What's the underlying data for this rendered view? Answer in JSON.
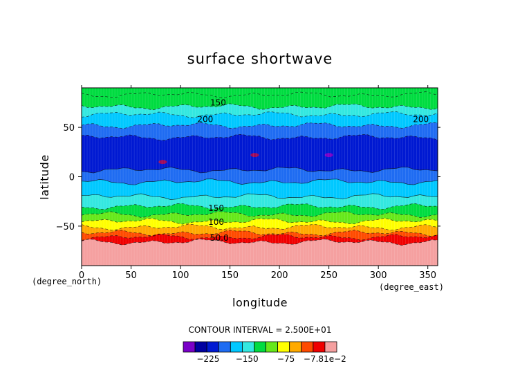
{
  "chart_data": {
    "type": "heatmap",
    "title": "surface shortwave",
    "xlabel": "longitude",
    "ylabel": "latitude",
    "x_unit": "(degree_east)",
    "y_unit": "(degree_north)",
    "xlim": [
      0,
      360
    ],
    "ylim": [
      -90,
      90
    ],
    "x_ticks": [
      0,
      50,
      100,
      150,
      200,
      250,
      300,
      350
    ],
    "x_tick_labels": [
      "0",
      "50",
      "100",
      "150",
      "200",
      "250",
      "300",
      "350"
    ],
    "y_ticks": [
      -50,
      0,
      50
    ],
    "y_tick_labels": [
      "−50",
      "0",
      "50"
    ],
    "contour_interval_text": "CONTOUR INTERVAL = 2.500E+01",
    "levels": [
      -250,
      -225,
      -200,
      -175,
      -150,
      -125,
      -100,
      -75,
      -50,
      -25,
      0
    ],
    "colorbar_colors": [
      "#7a00c8",
      "#0000a0",
      "#0019d2",
      "#1f6cf2",
      "#00c8ff",
      "#33e8e0",
      "#00dc40",
      "#66e81a",
      "#ffff00",
      "#ffaa00",
      "#ff4b00",
      "#f00000",
      "#f5a0a0"
    ],
    "colorbar_tick_labels": [
      "−225",
      "−150",
      "−75",
      "−7.81e−2"
    ],
    "colorbar_tick_values": [
      -225,
      -150,
      -75,
      -0.0781
    ],
    "zonal_bands": [
      {
        "lat_from": 90,
        "lat_to": 83,
        "color": "#00dc40"
      },
      {
        "lat_from": 83,
        "lat_to": 71,
        "color": "#00dc40"
      },
      {
        "lat_from": 71,
        "lat_to": 63,
        "color": "#33e8e0"
      },
      {
        "lat_from": 63,
        "lat_to": 52,
        "color": "#00c8ff"
      },
      {
        "lat_from": 52,
        "lat_to": 40,
        "color": "#1f6cf2"
      },
      {
        "lat_from": 40,
        "lat_to": 7,
        "color": "#0019d2"
      },
      {
        "lat_from": 7,
        "lat_to": -5,
        "color": "#1f6cf2"
      },
      {
        "lat_from": -5,
        "lat_to": -20,
        "color": "#00c8ff"
      },
      {
        "lat_from": -20,
        "lat_to": -30,
        "color": "#33e8e0"
      },
      {
        "lat_from": -30,
        "lat_to": -38,
        "color": "#00dc40"
      },
      {
        "lat_from": -38,
        "lat_to": -45,
        "color": "#66e81a"
      },
      {
        "lat_from": -45,
        "lat_to": -51,
        "color": "#ffff00"
      },
      {
        "lat_from": -51,
        "lat_to": -57,
        "color": "#ffaa00"
      },
      {
        "lat_from": -57,
        "lat_to": -61,
        "color": "#ff4b00"
      },
      {
        "lat_from": -61,
        "lat_to": -66,
        "color": "#f00000"
      },
      {
        "lat_from": -66,
        "lat_to": -90,
        "color": "#f5a0a0"
      }
    ],
    "dark_spots": [
      {
        "lon": 250,
        "lat": 22,
        "color": "#7a00c8"
      },
      {
        "lon": 82,
        "lat": 15,
        "color": "#9e0a5a"
      },
      {
        "lon": 175,
        "lat": 22,
        "color": "#9e0a5a"
      }
    ],
    "contour_labels": [
      {
        "text": "150",
        "lon": 130,
        "lat": 75
      },
      {
        "text": "200",
        "lon": 117,
        "lat": 58
      },
      {
        "text": "200",
        "lon": 335,
        "lat": 58
      },
      {
        "text": "150",
        "lon": 128,
        "lat": -32
      },
      {
        "text": "100",
        "lon": 128,
        "lat": -46
      },
      {
        "text": "50.0",
        "lon": 130,
        "lat": -62
      }
    ]
  }
}
